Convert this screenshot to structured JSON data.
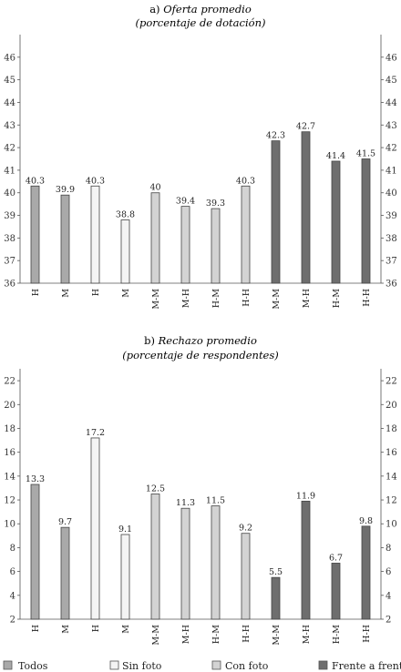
{
  "chart_data": [
    {
      "type": "bar",
      "title_prefix": "a)",
      "title": "Oferta promedio",
      "subtitle": "(porcentaje de dotación)",
      "categories": [
        "H",
        "M",
        "H",
        "M",
        "M-M",
        "M-H",
        "H-M",
        "H-H",
        "M-M",
        "M-H",
        "H-M",
        "H-H"
      ],
      "values": [
        40.3,
        39.9,
        40.3,
        38.8,
        40,
        39.4,
        39.3,
        40.3,
        42.3,
        42.7,
        41.4,
        41.5
      ],
      "value_labels": [
        "40.3",
        "39.9",
        "40.3",
        "38.8",
        "40",
        "39.4",
        "39.3",
        "40.3",
        "42.3",
        "42.7",
        "41.4",
        "41.5"
      ],
      "groups": [
        "Todos",
        "Todos",
        "Sin foto",
        "Sin foto",
        "Con foto",
        "Con foto",
        "Con foto",
        "Con foto",
        "Frente a frente",
        "Frente a frente",
        "Frente a frente",
        "Frente a frente"
      ],
      "ylim": [
        36,
        47
      ],
      "yticks": [
        "36",
        "37",
        "38",
        "39",
        "40",
        "41",
        "42",
        "43",
        "44",
        "45",
        "46"
      ],
      "ytick_values": [
        36,
        37,
        38,
        39,
        40,
        41,
        42,
        43,
        44,
        45,
        46
      ],
      "xlabel": "",
      "ylabel": "",
      "grid": false
    },
    {
      "type": "bar",
      "title_prefix": "b)",
      "title": "Rechazo promedio",
      "subtitle": "(porcentaje de respondentes)",
      "categories": [
        "H",
        "M",
        "H",
        "M",
        "M-M",
        "M-H",
        "H-M",
        "H-H",
        "M-M",
        "M-H",
        "H-M",
        "H-H"
      ],
      "values": [
        13.3,
        9.7,
        17.2,
        9.1,
        12.5,
        11.3,
        11.5,
        9.2,
        5.5,
        11.9,
        6.7,
        9.8
      ],
      "value_labels": [
        "13.3",
        "9.7",
        "17.2",
        "9.1",
        "12.5",
        "11.3",
        "11.5",
        "9.2",
        "5.5",
        "11.9",
        "6.7",
        "9.8"
      ],
      "groups": [
        "Todos",
        "Todos",
        "Sin foto",
        "Sin foto",
        "Con foto",
        "Con foto",
        "Con foto",
        "Con foto",
        "Frente a frente",
        "Frente a frente",
        "Frente a frente",
        "Frente a frente"
      ],
      "ylim": [
        2,
        23
      ],
      "yticks": [
        "2",
        "4",
        "6",
        "8",
        "10",
        "12",
        "14",
        "16",
        "18",
        "20",
        "22"
      ],
      "ytick_values": [
        2,
        4,
        6,
        8,
        10,
        12,
        14,
        16,
        18,
        20,
        22
      ],
      "xlabel": "",
      "ylabel": "",
      "grid": false
    }
  ],
  "legend": {
    "placement": "bottom",
    "items": [
      {
        "label": "Todos",
        "color": "#a9a9a9"
      },
      {
        "label": "Sin foto",
        "color": "#f4f4f4"
      },
      {
        "label": "Con foto",
        "color": "#d3d3d3"
      },
      {
        "label": "Frente a frente",
        "color": "#6e6e6e"
      }
    ]
  },
  "colors": {
    "Todos": "#a9a9a9",
    "Sin foto": "#f4f4f4",
    "Con foto": "#d3d3d3",
    "Frente a frente": "#6e6e6e",
    "axis": "#555555"
  }
}
